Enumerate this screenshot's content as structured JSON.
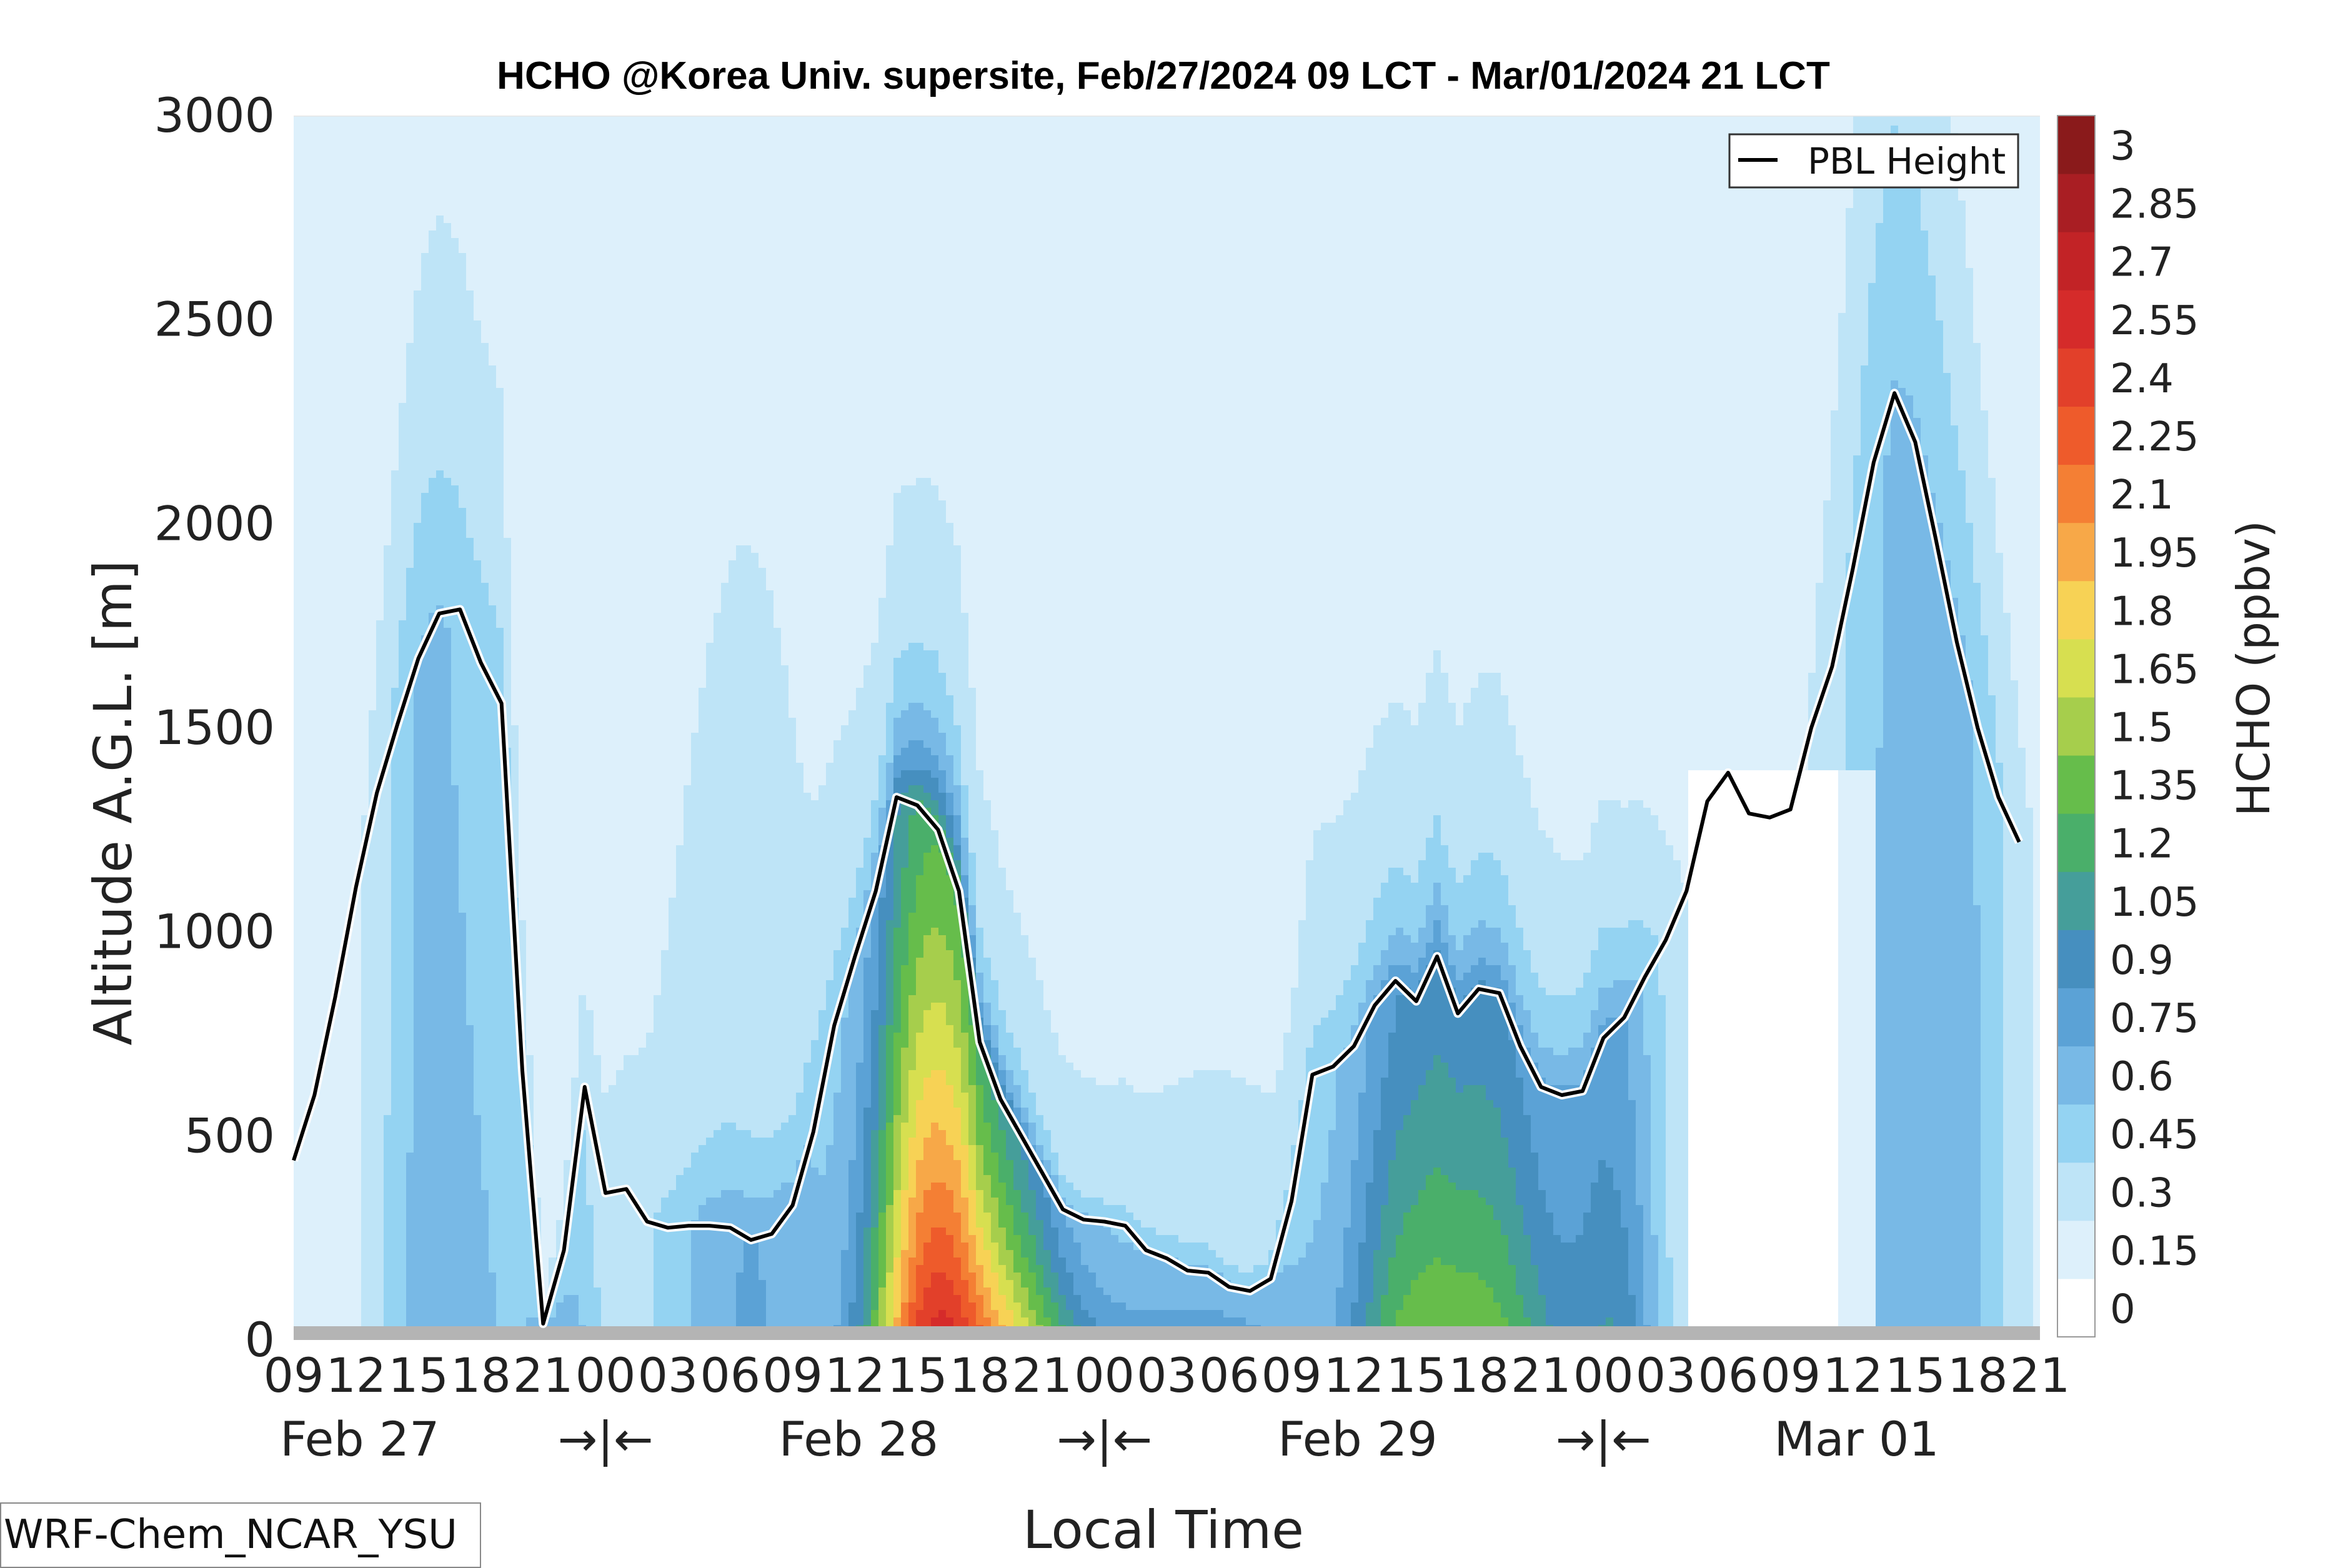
{
  "chart_data": {
    "type": "contour",
    "title": "HCHO @Korea Univ. supersite, Feb/27/2024 09 LCT - Mar/01/2024 21 LCT",
    "xlabel": "Local Time",
    "ylabel": "Altitude A.G.L. [m]",
    "colorbar_label": "HCHO (ppbv)",
    "model_label": "WRF-Chem_NCAR_YSU",
    "ylim": [
      0,
      3000
    ],
    "y_ticks": [
      "0",
      "500",
      "1000",
      "1500",
      "2000",
      "2500",
      "3000"
    ],
    "x_hour_ticks": [
      "09",
      "12",
      "15",
      "18",
      "21",
      "00",
      "03",
      "06",
      "09",
      "12",
      "15",
      "18",
      "21",
      "00",
      "03",
      "06",
      "09",
      "12",
      "15",
      "18",
      "21",
      "00",
      "03",
      "06",
      "09",
      "12",
      "15",
      "18",
      "21"
    ],
    "date_labels": [
      {
        "text": "Feb 27",
        "hour_index": 1
      },
      {
        "text": "Feb 28",
        "hour_index": 9
      },
      {
        "text": "Feb 29",
        "hour_index": 17
      },
      {
        "text": "Mar 01",
        "hour_index": 25
      }
    ],
    "day_separators": [
      {
        "text": "→|←",
        "hour_index": 5
      },
      {
        "text": "→|←",
        "hour_index": 13
      },
      {
        "text": "→|←",
        "hour_index": 21
      }
    ],
    "colorbar_levels": [
      "0",
      "0.15",
      "0.3",
      "0.45",
      "0.6",
      "0.75",
      "0.9",
      "1.05",
      "1.2",
      "1.35",
      "1.5",
      "1.65",
      "1.8",
      "1.95",
      "2.1",
      "2.25",
      "2.4",
      "2.55",
      "2.7",
      "2.85",
      "3"
    ],
    "colorbar_colors": [
      "#ffffff",
      "#ddf0fb",
      "#bee4f7",
      "#94d3f2",
      "#78b9e6",
      "#5ba2d6",
      "#468fbf",
      "#459e9a",
      "#4aaf6a",
      "#66bd4b",
      "#a6ce4c",
      "#d7df50",
      "#f7d255",
      "#f7a848",
      "#f47f34",
      "#ee5b2b",
      "#e2402a",
      "#d52b2a",
      "#c22326",
      "#a91e23",
      "#8a1a1b"
    ],
    "legend": {
      "label": "PBL Height",
      "position": "top-right"
    },
    "pbl_height": {
      "x_hours": [
        0,
        1,
        2,
        3,
        4,
        5,
        6,
        7,
        8,
        9,
        10,
        11,
        12,
        13,
        14,
        15,
        16,
        17,
        18,
        19,
        20,
        21,
        22,
        23,
        24,
        25,
        26,
        27,
        28,
        29,
        30,
        31,
        32,
        33,
        34,
        35,
        36,
        37,
        38,
        39,
        40,
        41,
        42,
        43,
        44,
        45,
        46,
        47,
        48,
        49,
        50,
        51,
        52,
        53,
        54,
        55,
        56,
        57,
        58,
        59,
        60,
        61,
        62,
        63,
        64,
        65,
        66,
        67,
        68,
        69,
        70,
        71,
        72,
        73,
        74,
        75,
        76,
        77,
        78,
        79,
        80,
        81,
        82,
        83,
        84
      ],
      "y": [
        440,
        600,
        840,
        1110,
        1340,
        1510,
        1670,
        1780,
        1790,
        1660,
        1560,
        660,
        40,
        220,
        620,
        360,
        370,
        290,
        275,
        280,
        280,
        275,
        245,
        260,
        330,
        510,
        770,
        940,
        1100,
        1330,
        1310,
        1250,
        1100,
        730,
        590,
        500,
        410,
        320,
        295,
        290,
        280,
        220,
        200,
        170,
        165,
        130,
        120,
        150,
        340,
        650,
        670,
        720,
        820,
        880,
        830,
        940,
        800,
        860,
        850,
        720,
        620,
        600,
        610,
        740,
        790,
        890,
        980,
        1100,
        1320,
        1390,
        1290,
        1280,
        1300,
        1500,
        1650,
        1890,
        2150,
        2320,
        2200,
        1960,
        1710,
        1500,
        1330,
        1220,
        null
      ],
      "y_max_index": 83
    }
  }
}
